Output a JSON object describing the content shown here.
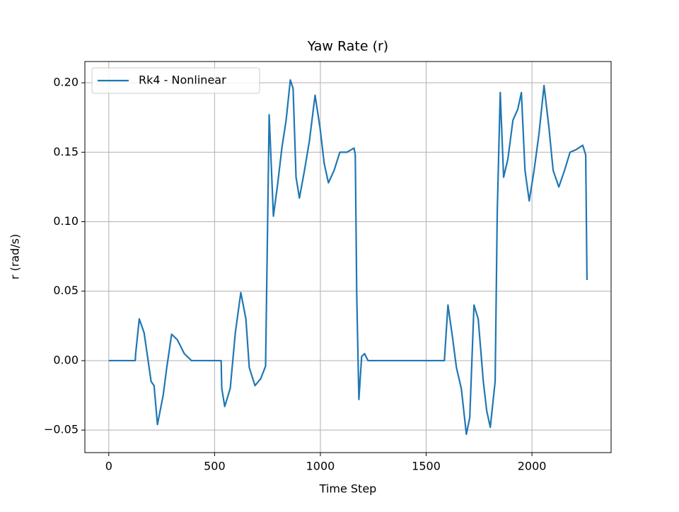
{
  "chart_data": {
    "type": "line",
    "title": "Yaw Rate (r)",
    "x_label": "Time Step",
    "y_label": "r (rad/s)",
    "x": [
      0,
      125,
      127,
      144,
      167,
      200,
      214,
      230,
      257,
      274,
      297,
      324,
      357,
      391,
      531,
      534,
      548,
      574,
      598,
      624,
      648,
      664,
      691,
      718,
      741,
      758,
      778,
      798,
      818,
      838,
      858,
      871,
      885,
      901,
      925,
      948,
      975,
      998,
      1018,
      1038,
      1065,
      1092,
      1125,
      1159,
      1165,
      1172,
      1182,
      1195,
      1209,
      1225,
      1586,
      1603,
      1626,
      1643,
      1666,
      1690,
      1706,
      1726,
      1746,
      1770,
      1786,
      1803,
      1826,
      1836,
      1850,
      1866,
      1886,
      1910,
      1933,
      1950,
      1967,
      1987,
      2010,
      2033,
      2057,
      2080,
      2100,
      2127,
      2154,
      2180,
      2210,
      2240,
      2254,
      2260
    ],
    "series": [
      {
        "name": "Rk4 - Nonlinear",
        "color": "#1f77b4",
        "values": [
          0,
          0,
          0.005,
          0.03,
          0.02,
          -0.015,
          -0.018,
          -0.046,
          -0.025,
          -0.005,
          0.019,
          0.015,
          0.005,
          0,
          0,
          -0.02,
          -0.033,
          -0.02,
          0.02,
          0.049,
          0.03,
          -0.005,
          -0.018,
          -0.013,
          -0.004,
          0.177,
          0.104,
          0.127,
          0.153,
          0.173,
          0.202,
          0.196,
          0.132,
          0.117,
          0.137,
          0.158,
          0.191,
          0.168,
          0.142,
          0.128,
          0.137,
          0.15,
          0.15,
          0.153,
          0.148,
          0.046,
          -0.028,
          0.003,
          0.005,
          0,
          0,
          0.04,
          0.015,
          -0.005,
          -0.02,
          -0.053,
          -0.041,
          0.04,
          0.03,
          -0.015,
          -0.036,
          -0.048,
          -0.015,
          0.107,
          0.193,
          0.132,
          0.145,
          0.173,
          0.181,
          0.193,
          0.137,
          0.115,
          0.137,
          0.163,
          0.198,
          0.168,
          0.137,
          0.125,
          0.137,
          0.15,
          0.152,
          0.155,
          0.148,
          0.058
        ]
      }
    ],
    "xlim": [
      -113,
      2374
    ],
    "ylim": [
      -0.0662,
      0.2153
    ],
    "xticks": [
      0,
      500,
      1000,
      1500,
      2000
    ],
    "yticks": [
      {
        "value": -0.05,
        "label": "−0.05"
      },
      {
        "value": 0,
        "label": "0.00"
      },
      0.05,
      {
        "value": 0.1,
        "label": "0.10"
      },
      0.15,
      {
        "value": 0.2,
        "label": "0.20"
      }
    ],
    "grid": true,
    "legend": "upper left"
  }
}
